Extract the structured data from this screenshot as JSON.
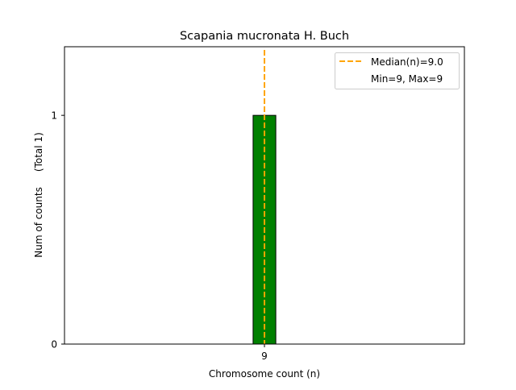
{
  "chart_data": {
    "type": "bar",
    "title": "Scapania mucronata H. Buch",
    "xlabel": "Chromosome count (n)",
    "ylabel": "Num of counts     (Total 1)",
    "categories": [
      9
    ],
    "values": [
      1
    ],
    "bar_width": 0.5,
    "xlim": [
      4.6,
      13.4
    ],
    "ylim": [
      0,
      1.3
    ],
    "xticks": [
      9
    ],
    "yticks": [
      0,
      1
    ],
    "grid": false,
    "bar_color": "#008000",
    "median": {
      "value": 9.0,
      "color": "#FFA500",
      "style": "dashed"
    },
    "legend": {
      "placement": "top-right",
      "entries": [
        "Median(n)=9.0",
        "Min=9, Max=9"
      ]
    }
  }
}
